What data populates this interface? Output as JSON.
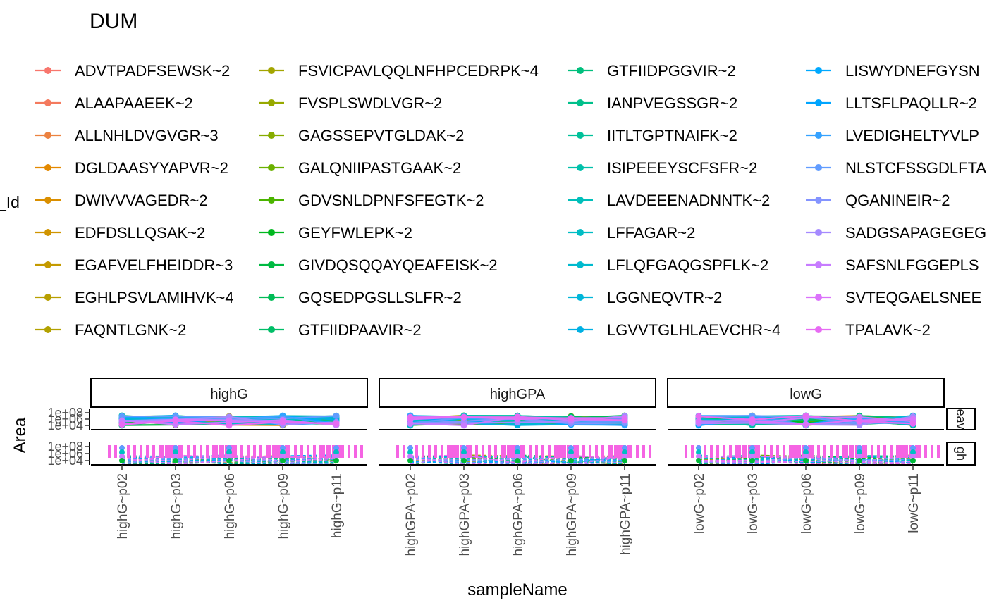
{
  "chart_data": {
    "type": "line",
    "title": "DUM",
    "xlabel": "sampleName",
    "ylabel": "Area",
    "legend_title_fragment": "_Id",
    "legend_position": "top",
    "grid": false,
    "y_scale": "log10",
    "y_tick_labels": [
      "1e+04",
      "1e+06",
      "1e+08"
    ],
    "facet_columns": [
      {
        "name": "highG",
        "samples": [
          "highG~p02",
          "highG~p03",
          "highG~p06",
          "highG~p09",
          "highG~p11"
        ]
      },
      {
        "name": "highGPA",
        "samples": [
          "highGPA~p02",
          "highGPA~p03",
          "highGPA~p06",
          "highGPA~p09",
          "highGPA~p11"
        ]
      },
      {
        "name": "lowG",
        "samples": [
          "lowG~p02",
          "lowG~p03",
          "lowG~p06",
          "lowG~p09",
          "lowG~p11"
        ]
      }
    ],
    "facet_rows": [
      {
        "name": "heavy",
        "label_visible": "eav"
      },
      {
        "name": "light",
        "label_visible": "gh"
      }
    ],
    "series": [
      {
        "name": "ADVTPADFSEWSK~2",
        "color": "#F8766D"
      },
      {
        "name": "ALAAPAAEEK~2",
        "color": "#F47A5E"
      },
      {
        "name": "ALLNHLDVGVGR~3",
        "color": "#EC8240"
      },
      {
        "name": "DGLDAASYYAPVR~2",
        "color": "#E38900"
      },
      {
        "name": "DWIVVVAGEDR~2",
        "color": "#DA8F00"
      },
      {
        "name": "EDFDSLLQSAK~2",
        "color": "#D09400"
      },
      {
        "name": "EGAFVELFHEIDDR~3",
        "color": "#C49A00"
      },
      {
        "name": "EGHLPSVLAMIHVK~4",
        "color": "#B89F00"
      },
      {
        "name": "FAQNTLGNK~2",
        "color": "#B2A100"
      },
      {
        "name": "FSVICPAVLQQLNFHPCEDRPK~4",
        "color": "#A3A500"
      },
      {
        "name": "FVSPLSWDLVGR~2",
        "color": "#97A900"
      },
      {
        "name": "GAGSSEPVTGLDAK~2",
        "color": "#87AC00"
      },
      {
        "name": "GALQNIIPASTGAAK~2",
        "color": "#6BB100"
      },
      {
        "name": "GDVSNLDPNFSFEGTK~2",
        "color": "#4BB400"
      },
      {
        "name": "GEYFWLEPK~2",
        "color": "#00B81F"
      },
      {
        "name": "GIVDQSQQAYQEAFEISK~2",
        "color": "#00BA42"
      },
      {
        "name": "GQSEDPGSLLSLFR~2",
        "color": "#00BC56"
      },
      {
        "name": "GTFIIDPAAVIR~2",
        "color": "#00BE67"
      },
      {
        "name": "GTFIIDPGGVIR~2",
        "color": "#00BF7D"
      },
      {
        "name": "IANPVEGSSGR~2",
        "color": "#00C08B"
      },
      {
        "name": "IITLTGPTNAIFK~2",
        "color": "#00C19A"
      },
      {
        "name": "ISIPEEEYSCFSFR~2",
        "color": "#00C0AA"
      },
      {
        "name": "LAVDEEENADNNTK~2",
        "color": "#00BFBA"
      },
      {
        "name": "LFFAGAR~2",
        "color": "#00BDC4"
      },
      {
        "name": "LFLQFGAQGSPFLK~2",
        "color": "#00BACE"
      },
      {
        "name": "LGGNEQVTR~2",
        "color": "#00B6D9"
      },
      {
        "name": "LGVVTGLHLAEVCHR~4",
        "color": "#00B0E3"
      },
      {
        "name": "LISWYDNEFGYSN",
        "color": "#00A9FF"
      },
      {
        "name": "LLTSFLPAQLLR~2",
        "color": "#00A5FF"
      },
      {
        "name": "LVEDIGHELTYVLP",
        "color": "#35A2FF"
      },
      {
        "name": "NLSTCFSSGDLFTA",
        "color": "#619CFF"
      },
      {
        "name": "QGANINEIR~2",
        "color": "#8494FF"
      },
      {
        "name": "SADGSAPAGEGEG",
        "color": "#A58AFF"
      },
      {
        "name": "SAFSNLFGGEPLS",
        "color": "#C77CFF"
      },
      {
        "name": "SVTEQGAELSNEE",
        "color": "#DB72FB"
      },
      {
        "name": "TPALAVK~2",
        "color": "#E76BF3"
      }
    ]
  }
}
